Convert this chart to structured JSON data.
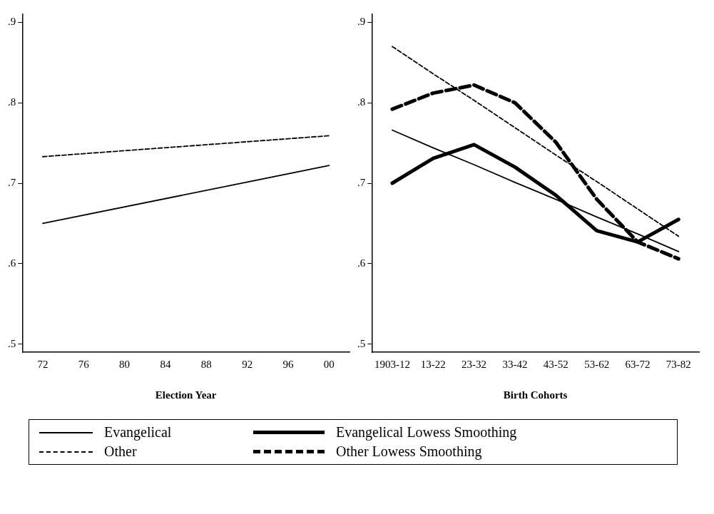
{
  "chart_data": [
    {
      "type": "line",
      "xlabel": "Election Year",
      "x": [
        1972,
        2000
      ],
      "xlim": [
        1970,
        2002
      ],
      "xticks": [
        {
          "value": 1972,
          "label": "72"
        },
        {
          "value": 1976,
          "label": "76"
        },
        {
          "value": 1980,
          "label": "80"
        },
        {
          "value": 1984,
          "label": "84"
        },
        {
          "value": 1988,
          "label": "88"
        },
        {
          "value": 1992,
          "label": "92"
        },
        {
          "value": 1996,
          "label": "96"
        },
        {
          "value": 2000,
          "label": "00"
        }
      ],
      "ylim": [
        0.49,
        0.91
      ],
      "yticks": [
        {
          "value": 0.5,
          "label": ".5"
        },
        {
          "value": 0.6,
          "label": ".6"
        },
        {
          "value": 0.7,
          "label": ".7"
        },
        {
          "value": 0.8,
          "label": ".8"
        },
        {
          "value": 0.9,
          "label": ".9"
        }
      ],
      "legend": "bottom",
      "series": [
        {
          "name": "Evangelical",
          "color": "#000000",
          "line_style": "solid",
          "values": [
            0.65,
            0.722
          ]
        },
        {
          "name": "Other",
          "color": "#000000",
          "line_style": "dashed",
          "values": [
            0.733,
            0.759
          ]
        }
      ]
    },
    {
      "type": "line",
      "xlabel": "Birth Cohorts",
      "categories": [
        "1903-12",
        "13-22",
        "23-32",
        "33-42",
        "43-52",
        "53-62",
        "63-72",
        "73-82"
      ],
      "ylim": [
        0.49,
        0.91
      ],
      "yticks": [
        {
          "value": 0.5,
          "label": ".5"
        },
        {
          "value": 0.6,
          "label": ".6"
        },
        {
          "value": 0.7,
          "label": ".7"
        },
        {
          "value": 0.8,
          "label": ".8"
        },
        {
          "value": 0.9,
          "label": ".9"
        }
      ],
      "legend": "bottom",
      "series": [
        {
          "name": "Evangelical",
          "color": "#000000",
          "line_style": "solid",
          "values": [
            0.766,
            0.744,
            0.723,
            0.701,
            0.68,
            0.658,
            0.637,
            0.615
          ]
        },
        {
          "name": "Other",
          "color": "#000000",
          "line_style": "dashed",
          "values": [
            0.87,
            0.836,
            0.803,
            0.769,
            0.735,
            0.702,
            0.668,
            0.634
          ]
        },
        {
          "name": "Evangelical Lowess Smoothing",
          "color": "#000000",
          "line_style": "solid",
          "values": [
            0.7,
            0.731,
            0.748,
            0.72,
            0.685,
            0.641,
            0.627,
            0.655
          ]
        },
        {
          "name": "Other Lowess Smoothing",
          "color": "#000000",
          "line_style": "dashed",
          "values": [
            0.792,
            0.812,
            0.822,
            0.8,
            0.751,
            0.68,
            0.627,
            0.606
          ]
        }
      ]
    }
  ]
}
